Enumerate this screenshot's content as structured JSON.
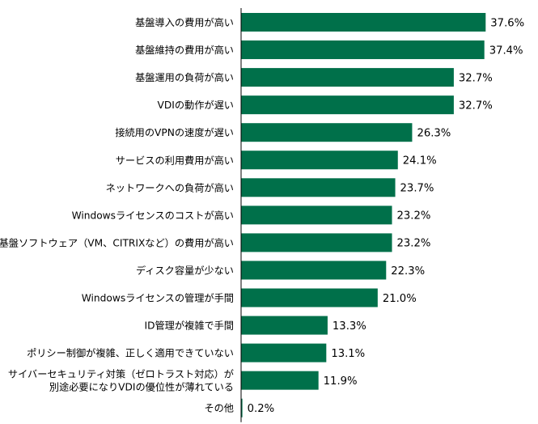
{
  "chart_data": {
    "type": "bar",
    "orientation": "horizontal",
    "title": "",
    "xlabel": "",
    "ylabel": "",
    "xlim": [
      0,
      40
    ],
    "grid": false,
    "legend": "none",
    "value_suffix": "%",
    "bar_color": "#00704a",
    "axis_color": "#000000",
    "categories": [
      [
        "基盤導入の費用が高い"
      ],
      [
        "基盤維持の費用が高い"
      ],
      [
        "基盤運用の負荷が高い"
      ],
      [
        "VDIの動作が遅い"
      ],
      [
        "接続用のVPNの速度が遅い"
      ],
      [
        "サービスの利用費用が高い"
      ],
      [
        "ネットワークへの負荷が高い"
      ],
      [
        "Windowsライセンスのコストが高い"
      ],
      [
        "基盤ソフトウェア（VM、CITRIXなど）の費用が高い"
      ],
      [
        "ディスク容量が少ない"
      ],
      [
        "Windowsライセンスの管理が手間"
      ],
      [
        "ID管理が複雑で手間"
      ],
      [
        "ポリシー制御が複雑、正しく適用できていない"
      ],
      [
        "サイバーセキュリティ対策（ゼロトラスト対応）が",
        "別途必要になりVDIの優位性が薄れている"
      ],
      [
        "その他"
      ]
    ],
    "values": [
      37.6,
      37.4,
      32.7,
      32.7,
      26.3,
      24.1,
      23.7,
      23.2,
      23.2,
      22.3,
      21.0,
      13.3,
      13.1,
      11.9,
      0.2
    ]
  }
}
